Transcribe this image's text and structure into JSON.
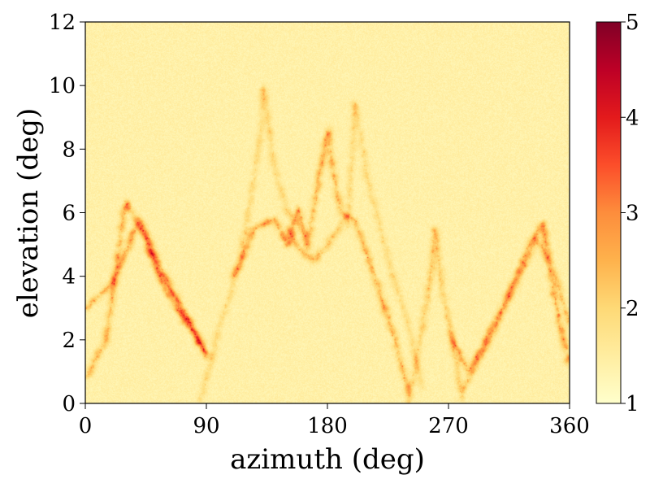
{
  "chart_data": {
    "type": "heatmap",
    "title": "",
    "xlabel": "azimuth (deg)",
    "ylabel": "elevation (deg)",
    "xlim": [
      0,
      360
    ],
    "ylim": [
      0,
      12
    ],
    "xticks": [
      0,
      90,
      180,
      270,
      360
    ],
    "yticks": [
      0,
      2,
      4,
      6,
      8,
      10,
      12
    ],
    "x_tick_labels": [
      "0",
      "90",
      "180",
      "270",
      "360"
    ],
    "y_tick_labels": [
      "0",
      "2",
      "4",
      "6",
      "8",
      "10",
      "12"
    ],
    "colorbar": {
      "range": [
        1,
        5
      ],
      "ticks": [
        1,
        2,
        3,
        4,
        5
      ],
      "tick_labels": [
        "1",
        "2",
        "3",
        "4",
        "5"
      ],
      "colormap": "YlOrRd",
      "colors": [
        "#ffffcc",
        "#ffeda0",
        "#fed976",
        "#feb24c",
        "#fd8d3c",
        "#fc4e2a",
        "#e31a1c",
        "#bd0026",
        "#800026"
      ]
    },
    "grid": false,
    "background_value": 1.4,
    "ridges": [
      {
        "points": [
          [
            0,
            0.8
          ],
          [
            15,
            2.0
          ],
          [
            30,
            6.4
          ],
          [
            45,
            5.2
          ],
          [
            60,
            3.5
          ],
          [
            80,
            2.2
          ],
          [
            90,
            1.5
          ]
        ],
        "peak": 3.3
      },
      {
        "points": [
          [
            0,
            3.0
          ],
          [
            20,
            3.8
          ],
          [
            40,
            5.8
          ],
          [
            50,
            4.8
          ],
          [
            70,
            3.0
          ],
          [
            90,
            1.6
          ]
        ],
        "peak": 3.6
      },
      {
        "points": [
          [
            45,
            5.0
          ],
          [
            55,
            4.0
          ],
          [
            70,
            3.2
          ],
          [
            85,
            2.0
          ],
          [
            90,
            1.4
          ]
        ],
        "peak": 3.0
      },
      {
        "points": [
          [
            85,
            0.0
          ],
          [
            100,
            2.5
          ],
          [
            115,
            4.5
          ],
          [
            130,
            8.5
          ],
          [
            132,
            10.0
          ],
          [
            140,
            7.5
          ],
          [
            150,
            6.0
          ],
          [
            160,
            5.5
          ]
        ],
        "peak": 2.5
      },
      {
        "points": [
          [
            110,
            4.0
          ],
          [
            125,
            5.5
          ],
          [
            140,
            5.8
          ],
          [
            150,
            5.0
          ],
          [
            158,
            6.2
          ],
          [
            165,
            4.8
          ]
        ],
        "peak": 3.7
      },
      {
        "points": [
          [
            165,
            5.0
          ],
          [
            175,
            7.5
          ],
          [
            180,
            8.6
          ],
          [
            185,
            7.0
          ],
          [
            190,
            6.0
          ],
          [
            200,
            5.8
          ],
          [
            215,
            4.0
          ],
          [
            230,
            2.0
          ],
          [
            240,
            0.3
          ]
        ],
        "peak": 3.4
      },
      {
        "points": [
          [
            195,
            5.5
          ],
          [
            200,
            9.5
          ],
          [
            210,
            7.0
          ],
          [
            225,
            4.5
          ],
          [
            240,
            2.5
          ],
          [
            250,
            0.5
          ]
        ],
        "peak": 2.4
      },
      {
        "points": [
          [
            240,
            0.0
          ],
          [
            255,
            3.5
          ],
          [
            260,
            5.5
          ],
          [
            265,
            3.5
          ],
          [
            275,
            1.5
          ],
          [
            280,
            0.0
          ]
        ],
        "peak": 2.8
      },
      {
        "points": [
          [
            270,
            2.2
          ],
          [
            285,
            1.0
          ],
          [
            295,
            1.8
          ],
          [
            310,
            3.0
          ],
          [
            330,
            5.0
          ],
          [
            340,
            5.7
          ],
          [
            350,
            3.0
          ],
          [
            360,
            1.2
          ]
        ],
        "peak": 3.6
      },
      {
        "points": [
          [
            280,
            0.4
          ],
          [
            300,
            2.0
          ],
          [
            320,
            3.8
          ],
          [
            335,
            5.2
          ],
          [
            345,
            4.5
          ],
          [
            360,
            2.5
          ]
        ],
        "peak": 3.0
      },
      {
        "points": [
          [
            150,
            5.5
          ],
          [
            160,
            4.8
          ],
          [
            170,
            4.5
          ],
          [
            180,
            5.0
          ],
          [
            195,
            6.0
          ]
        ],
        "peak": 3.2
      }
    ]
  }
}
